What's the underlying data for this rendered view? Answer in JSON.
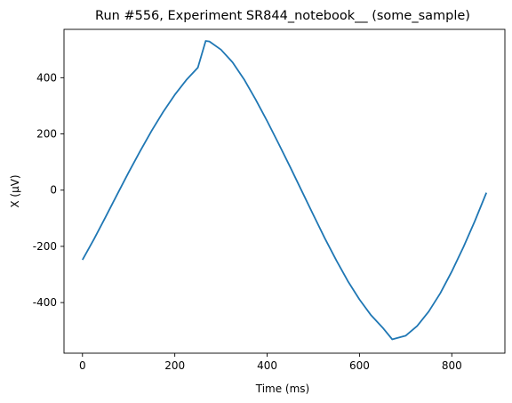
{
  "chart_data": {
    "type": "line",
    "title": "Run #556, Experiment SR844_notebook__ (some_sample)",
    "xlabel": "Time (ms)",
    "ylabel": "X (µV)",
    "xlim": [
      -40,
      915
    ],
    "ylim": [
      -580,
      572
    ],
    "xticks": [
      0,
      200,
      400,
      600,
      800
    ],
    "xtick_labels": [
      "0",
      "200",
      "400",
      "600",
      "800"
    ],
    "yticks": [
      -400,
      -200,
      0,
      200,
      400
    ],
    "ytick_labels": [
      "-400",
      "-200",
      "0",
      "200",
      "400"
    ],
    "grid": false,
    "series": [
      {
        "color": "#1f77b4",
        "x": [
          0,
          25,
          50,
          75,
          100,
          125,
          150,
          175,
          200,
          225,
          250,
          267,
          275,
          300,
          325,
          350,
          375,
          400,
          425,
          450,
          475,
          500,
          525,
          550,
          575,
          600,
          625,
          650,
          671,
          675,
          700,
          725,
          750,
          775,
          800,
          825,
          850,
          875
        ],
        "y": [
          -248,
          -174,
          -96,
          -16,
          63,
          139,
          212,
          279,
          339,
          392,
          436,
          531,
          529,
          500,
          455,
          394,
          323,
          246,
          165,
          82,
          -3,
          -88,
          -171,
          -250,
          -324,
          -389,
          -445,
          -489,
          -531,
          -529,
          -518,
          -483,
          -432,
          -367,
          -289,
          -203,
          -110,
          -9
        ]
      }
    ]
  }
}
